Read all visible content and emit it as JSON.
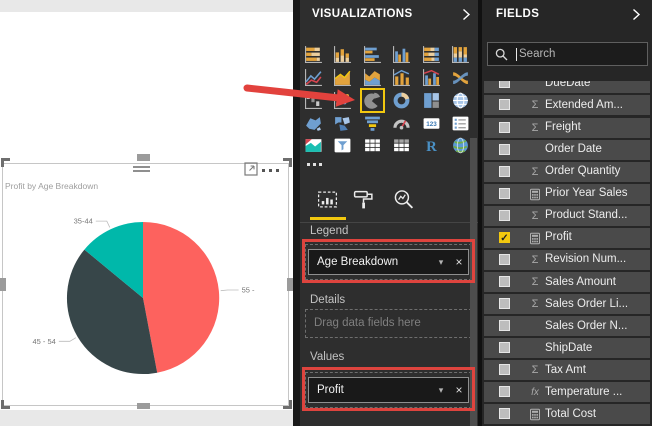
{
  "canvas": {
    "visual": {
      "title": "Profit by Age Breakdown",
      "chrome": {
        "drag_handle": "drag-handle",
        "focus_mode": "focus-mode",
        "more_options": "more-options"
      }
    }
  },
  "chart_data": {
    "type": "pie",
    "title": "Profit by Age Breakdown",
    "legend_field": "Age Breakdown",
    "value_field": "Profit",
    "legend_position": "none",
    "slices": [
      {
        "label": "55 -",
        "value": 47,
        "color": "#fd625e"
      },
      {
        "label": "45 - 54",
        "value": 39,
        "color": "#374649"
      },
      {
        "label": "35-44",
        "value": 14,
        "color": "#00b8aa"
      }
    ]
  },
  "visualizations_panel": {
    "title": "VISUALIZATIONS",
    "collapse_icon": "chevron-right-icon",
    "icons": [
      {
        "name": "stacked-bar-chart"
      },
      {
        "name": "stacked-column-chart"
      },
      {
        "name": "clustered-bar-chart"
      },
      {
        "name": "clustered-column-chart"
      },
      {
        "name": "100-stacked-bar-chart"
      },
      {
        "name": "100-stacked-column-chart"
      },
      {
        "name": "line-chart"
      },
      {
        "name": "area-chart"
      },
      {
        "name": "stacked-area-chart"
      },
      {
        "name": "line-stacked-column-chart"
      },
      {
        "name": "line-clustered-column-chart"
      },
      {
        "name": "ribbon-chart"
      },
      {
        "name": "waterfall-chart"
      },
      {
        "name": "scatter-chart"
      },
      {
        "name": "pie-chart",
        "highlighted": true
      },
      {
        "name": "donut-chart"
      },
      {
        "name": "treemap"
      },
      {
        "name": "map"
      },
      {
        "name": "filled-map"
      },
      {
        "name": "shape-map"
      },
      {
        "name": "funnel"
      },
      {
        "name": "gauge"
      },
      {
        "name": "card"
      },
      {
        "name": "multi-row-card"
      },
      {
        "name": "kpi"
      },
      {
        "name": "slicer"
      },
      {
        "name": "table"
      },
      {
        "name": "matrix"
      },
      {
        "name": "r-script"
      },
      {
        "name": "arcgis-map"
      }
    ],
    "highlight_color": "#f2c80f",
    "tabs": [
      {
        "name": "fields",
        "active": true
      },
      {
        "name": "format",
        "active": false
      },
      {
        "name": "analytics",
        "active": false
      }
    ],
    "wells": {
      "legend_label": "Legend",
      "legend_value": "Age Breakdown",
      "details_label": "Details",
      "details_placeholder": "Drag data fields here",
      "values_label": "Values",
      "values_value": "Profit"
    },
    "annotation_color": "#de443e"
  },
  "fields_panel": {
    "title": "FIELDS",
    "collapse_icon": "chevron-right-icon",
    "search_placeholder": "Search",
    "fields": [
      {
        "name": "DueDate",
        "icon": "none",
        "checked": false,
        "partial": true
      },
      {
        "name": "Extended Am...",
        "icon": "sigma",
        "checked": false
      },
      {
        "name": "Freight",
        "icon": "sigma",
        "checked": false
      },
      {
        "name": "Order Date",
        "icon": "none",
        "checked": false
      },
      {
        "name": "Order Quantity",
        "icon": "sigma",
        "checked": false
      },
      {
        "name": "Prior Year Sales",
        "icon": "calculator",
        "checked": false
      },
      {
        "name": "Product Stand...",
        "icon": "sigma",
        "checked": false
      },
      {
        "name": "Profit",
        "icon": "calculator",
        "checked": true
      },
      {
        "name": "Revision Num...",
        "icon": "sigma",
        "checked": false
      },
      {
        "name": "Sales Amount",
        "icon": "sigma",
        "checked": false
      },
      {
        "name": "Sales Order Li...",
        "icon": "sigma",
        "checked": false
      },
      {
        "name": "Sales Order N...",
        "icon": "none",
        "checked": false
      },
      {
        "name": "ShipDate",
        "icon": "none",
        "checked": false
      },
      {
        "name": "Tax Amt",
        "icon": "sigma",
        "checked": false
      },
      {
        "name": "Temperature ...",
        "icon": "fx",
        "checked": false
      },
      {
        "name": "Total Cost",
        "icon": "calculator",
        "checked": false
      }
    ]
  }
}
